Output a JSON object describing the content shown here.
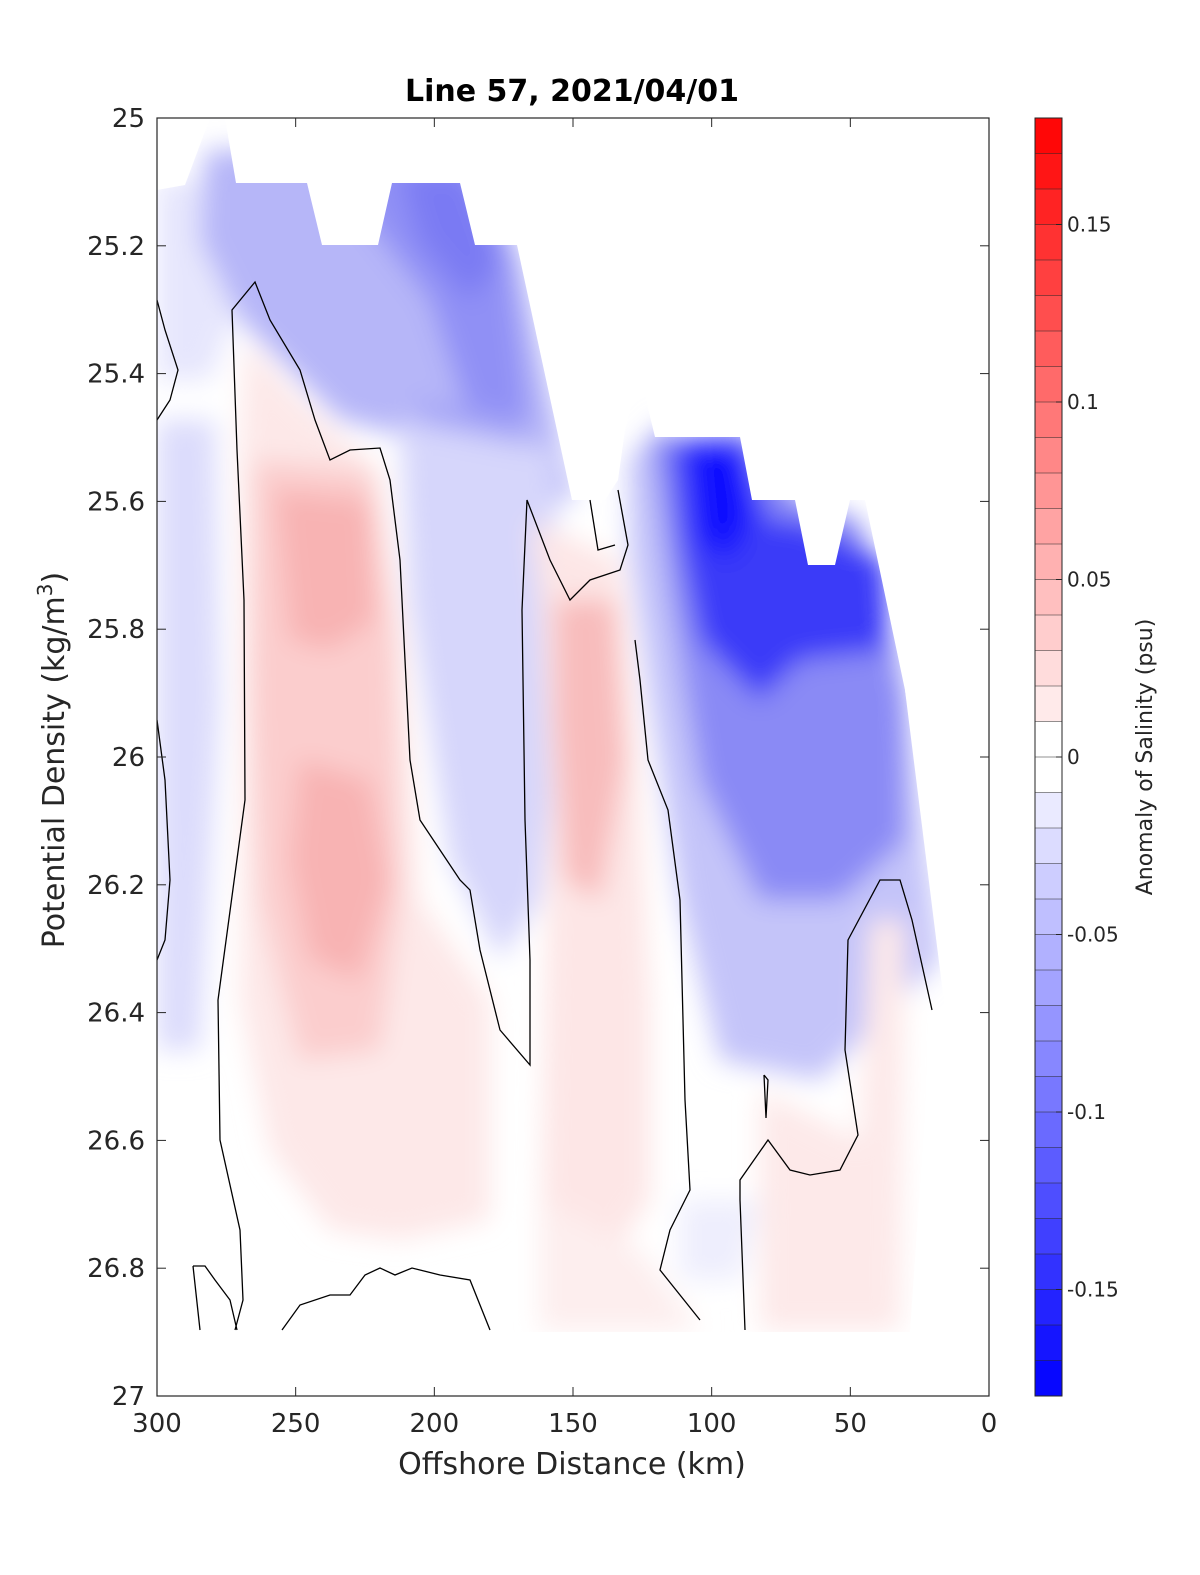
{
  "chart_data": {
    "type": "heatmap",
    "title": "Line 57, 2021/04/01",
    "xlabel": "Offshore Distance (km)",
    "ylabel": "Potential Density (kg/m",
    "ylabel_sup": "3",
    "ylabel_close": ")",
    "colorbar_label": "Anomaly of Salinity (psu)",
    "xlim": [
      300,
      0
    ],
    "ylim": [
      25,
      27
    ],
    "x_reversed": true,
    "y_reversed": true,
    "x_ticks": [
      "300",
      "250",
      "200",
      "150",
      "100",
      "50",
      "0"
    ],
    "y_ticks": [
      "25",
      "25.2",
      "25.4",
      "25.6",
      "25.8",
      "26",
      "26.2",
      "26.4",
      "26.6",
      "26.8",
      "27"
    ],
    "colorbar_ticks": [
      "0.15",
      "0.1",
      "0.05",
      "0",
      "-0.05",
      "-0.1",
      "-0.15"
    ],
    "colorbar_range": [
      -0.18,
      0.18
    ],
    "colorbar_levels": 36,
    "colors": {
      "negative": "#0000ff",
      "positive": "#ff0000",
      "zero": "#ffffff",
      "contour": "#000000"
    },
    "grid": false,
    "features": [
      {
        "name": "surface-fresh-core-offshore",
        "sign": "negative",
        "peak": -0.09,
        "x_range": [
          270,
          175
        ],
        "y_range": [
          25.1,
          25.6
        ]
      },
      {
        "name": "fresh-tongue-mid",
        "sign": "negative",
        "peak": -0.07,
        "x_range": [
          200,
          160
        ],
        "y_range": [
          25.4,
          26.2
        ]
      },
      {
        "name": "fresh-core-nearshore",
        "sign": "negative",
        "peak": -0.17,
        "x_range": [
          130,
          30
        ],
        "y_range": [
          25.5,
          26.4
        ]
      },
      {
        "name": "salty-core-offshore",
        "sign": "positive",
        "peak": 0.05,
        "x_range": [
          265,
          195
        ],
        "y_range": [
          25.6,
          26.9
        ]
      },
      {
        "name": "salty-core-mid",
        "sign": "positive",
        "peak": 0.04,
        "x_range": [
          160,
          125
        ],
        "y_range": [
          25.7,
          26.9
        ]
      },
      {
        "name": "weak-salty-nearshore",
        "sign": "positive",
        "peak": 0.02,
        "x_range": [
          85,
          35
        ],
        "y_range": [
          26.2,
          26.9
        ]
      },
      {
        "name": "weak-fresh-deep-offshore",
        "sign": "negative",
        "peak": -0.02,
        "x_range": [
          300,
          260
        ],
        "y_range": [
          25.4,
          26.8
        ]
      }
    ]
  }
}
